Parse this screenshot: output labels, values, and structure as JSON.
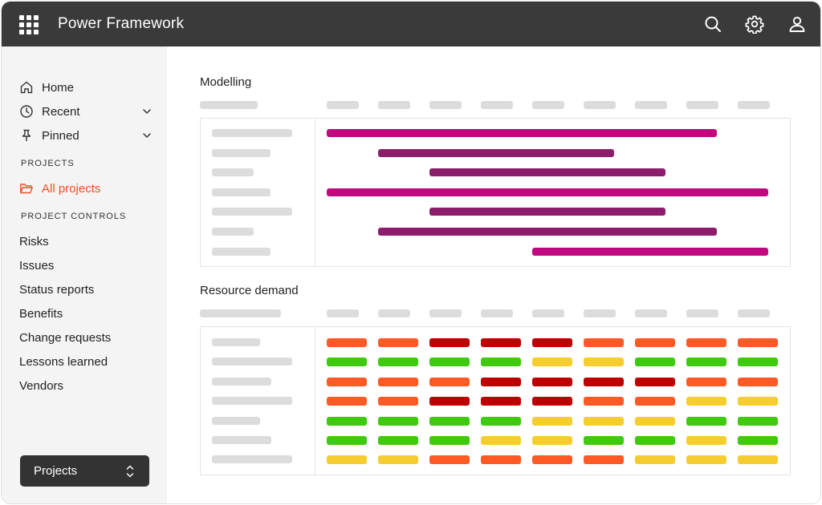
{
  "app": {
    "title": "Power Framework"
  },
  "topbar": {
    "icons": [
      "apps-grid-icon",
      "search-icon",
      "settings-gear-icon",
      "user-account-icon"
    ]
  },
  "sidebar": {
    "nav": [
      {
        "label": "Home",
        "icon": "home-icon",
        "has_chevron": false
      },
      {
        "label": "Recent",
        "icon": "clock-icon",
        "has_chevron": true
      },
      {
        "label": "Pinned",
        "icon": "pin-icon",
        "has_chevron": true
      }
    ],
    "projects_section": {
      "label": "PROJECTS",
      "items": [
        {
          "label": "All projects",
          "icon": "folder-icon",
          "active": true
        }
      ]
    },
    "controls_section": {
      "label": "PROJECT CONTROLS",
      "items": [
        "Risks",
        "Issues",
        "Status reports",
        "Benefits",
        "Change requests",
        "Lessons learned",
        "Vendors"
      ]
    },
    "selector": {
      "label": "Projects",
      "icon": "chevron-updown-icon"
    }
  },
  "colors": {
    "accent": "#f04e23",
    "magenta": "#c0087f",
    "purple": "#8c1d6a",
    "red_orange": "#ff5a26",
    "dark_red": "#bf0000",
    "green": "#3fc90f",
    "yellow": "#f6cd2e",
    "placeholder": "#dcdcdc"
  },
  "modelling": {
    "title": "Modelling",
    "column_count": 9,
    "rows": [
      {
        "start_col": 0,
        "end_col": 7.6,
        "color": "magenta"
      },
      {
        "start_col": 1,
        "end_col": 5.6,
        "color": "purple"
      },
      {
        "start_col": 2,
        "end_col": 6.6,
        "color": "purple"
      },
      {
        "start_col": 0,
        "end_col": 8.6,
        "color": "magenta"
      },
      {
        "start_col": 2,
        "end_col": 6.6,
        "color": "purple"
      },
      {
        "start_col": 1,
        "end_col": 7.6,
        "color": "purple"
      },
      {
        "start_col": 4,
        "end_col": 8.6,
        "color": "magenta"
      }
    ]
  },
  "resource_demand": {
    "title": "Resource demand",
    "grid": [
      [
        "red_orange",
        "red_orange",
        "dark_red",
        "dark_red",
        "dark_red",
        "red_orange",
        "red_orange",
        "red_orange",
        "red_orange"
      ],
      [
        "green",
        "green",
        "green",
        "green",
        "yellow",
        "yellow",
        "green",
        "green",
        "green"
      ],
      [
        "red_orange",
        "red_orange",
        "red_orange",
        "dark_red",
        "dark_red",
        "dark_red",
        "dark_red",
        "red_orange",
        "red_orange"
      ],
      [
        "red_orange",
        "red_orange",
        "dark_red",
        "dark_red",
        "dark_red",
        "red_orange",
        "red_orange",
        "yellow",
        "yellow"
      ],
      [
        "green",
        "green",
        "green",
        "green",
        "yellow",
        "yellow",
        "yellow",
        "green",
        "green"
      ],
      [
        "green",
        "green",
        "green",
        "yellow",
        "yellow",
        "green",
        "green",
        "yellow",
        "green"
      ],
      [
        "yellow",
        "yellow",
        "red_orange",
        "red_orange",
        "red_orange",
        "red_orange",
        "yellow",
        "yellow",
        "yellow"
      ]
    ]
  }
}
